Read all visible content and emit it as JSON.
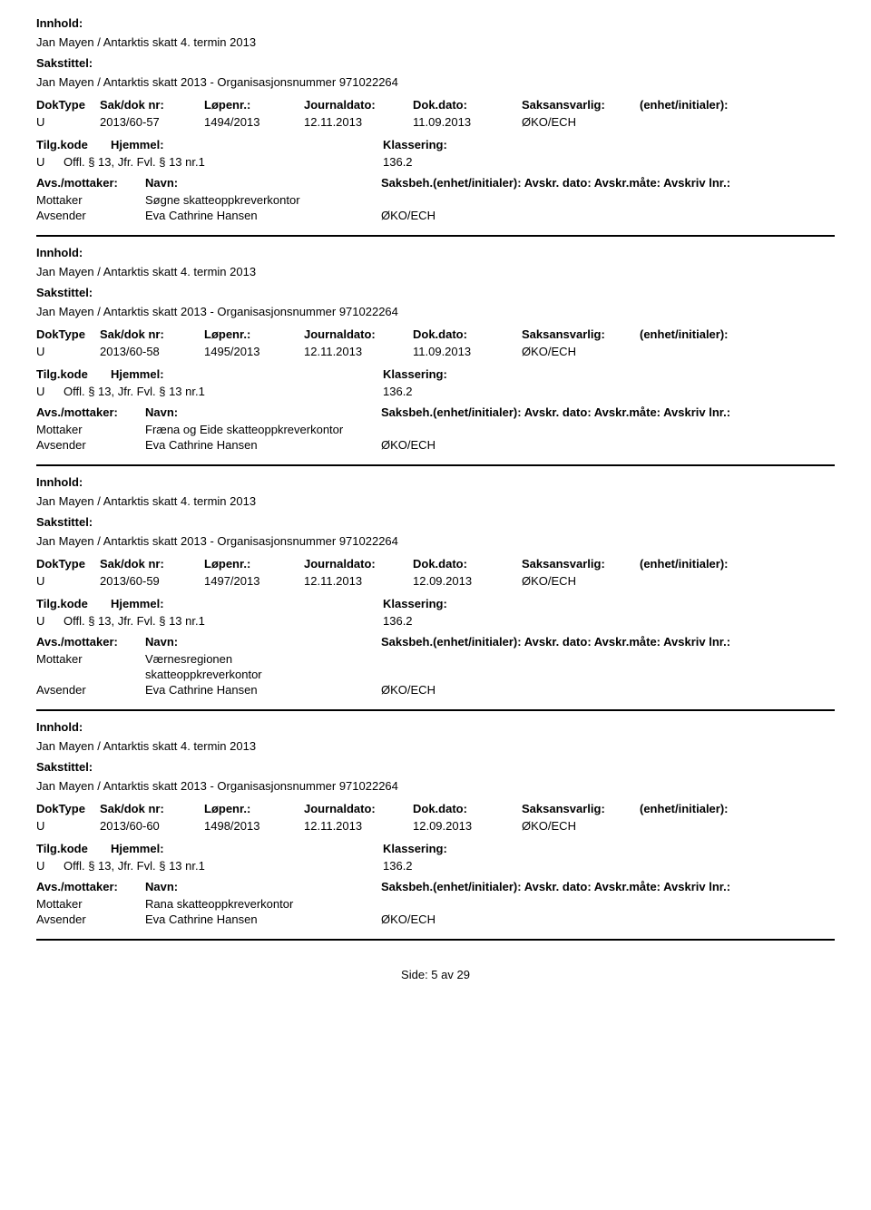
{
  "labels": {
    "innhold": "Innhold:",
    "sakstittel": "Sakstittel:",
    "doktype": "DokType",
    "sakdok": "Sak/dok nr:",
    "lopenr": "Løpenr.:",
    "journaldato": "Journaldato:",
    "dokdato": "Dok.dato:",
    "saksansvarlig": "Saksansvarlig:",
    "enhet": "(enhet/initialer):",
    "tilgkode": "Tilg.kode",
    "hjemmel": "Hjemmel:",
    "klassering": "Klassering:",
    "avsmottaker": "Avs./mottaker:",
    "navn": "Navn:",
    "saksbeh_line": "Saksbeh.(enhet/initialer): Avskr. dato: Avskr.måte: Avskriv lnr.:",
    "mottaker": "Mottaker",
    "avsender": "Avsender"
  },
  "common": {
    "innhold_text": "Jan Mayen / Antarktis skatt 4. termin 2013",
    "sakstittel_text": "Jan Mayen / Antarktis skatt 2013 - Organisasjonsnummer 971022264",
    "doktype_val": "U",
    "journaldato_val": "12.11.2013",
    "saksansvarlig_val": "ØKO/ECH",
    "tilgkode_val": "U",
    "hjemmel_val": "Offl. § 13, Jfr. Fvl. § 13 nr.1",
    "klassering_val": "136.2",
    "avsender_name": "Eva Cathrine Hansen",
    "avsender_code": "ØKO/ECH"
  },
  "records": [
    {
      "sakdok": "2013/60-57",
      "lopenr": "1494/2013",
      "dokdato": "11.09.2013",
      "mottaker_name": "Søgne skatteoppkreverkontor",
      "mottaker_name2": ""
    },
    {
      "sakdok": "2013/60-58",
      "lopenr": "1495/2013",
      "dokdato": "11.09.2013",
      "mottaker_name": "Fræna og Eide skatteoppkreverkontor",
      "mottaker_name2": ""
    },
    {
      "sakdok": "2013/60-59",
      "lopenr": "1497/2013",
      "dokdato": "12.09.2013",
      "mottaker_name": "Værnesregionen",
      "mottaker_name2": "skatteoppkreverkontor"
    },
    {
      "sakdok": "2013/60-60",
      "lopenr": "1498/2013",
      "dokdato": "12.09.2013",
      "mottaker_name": "Rana skatteoppkreverkontor",
      "mottaker_name2": ""
    }
  ],
  "footer": "Side: 5 av 29"
}
